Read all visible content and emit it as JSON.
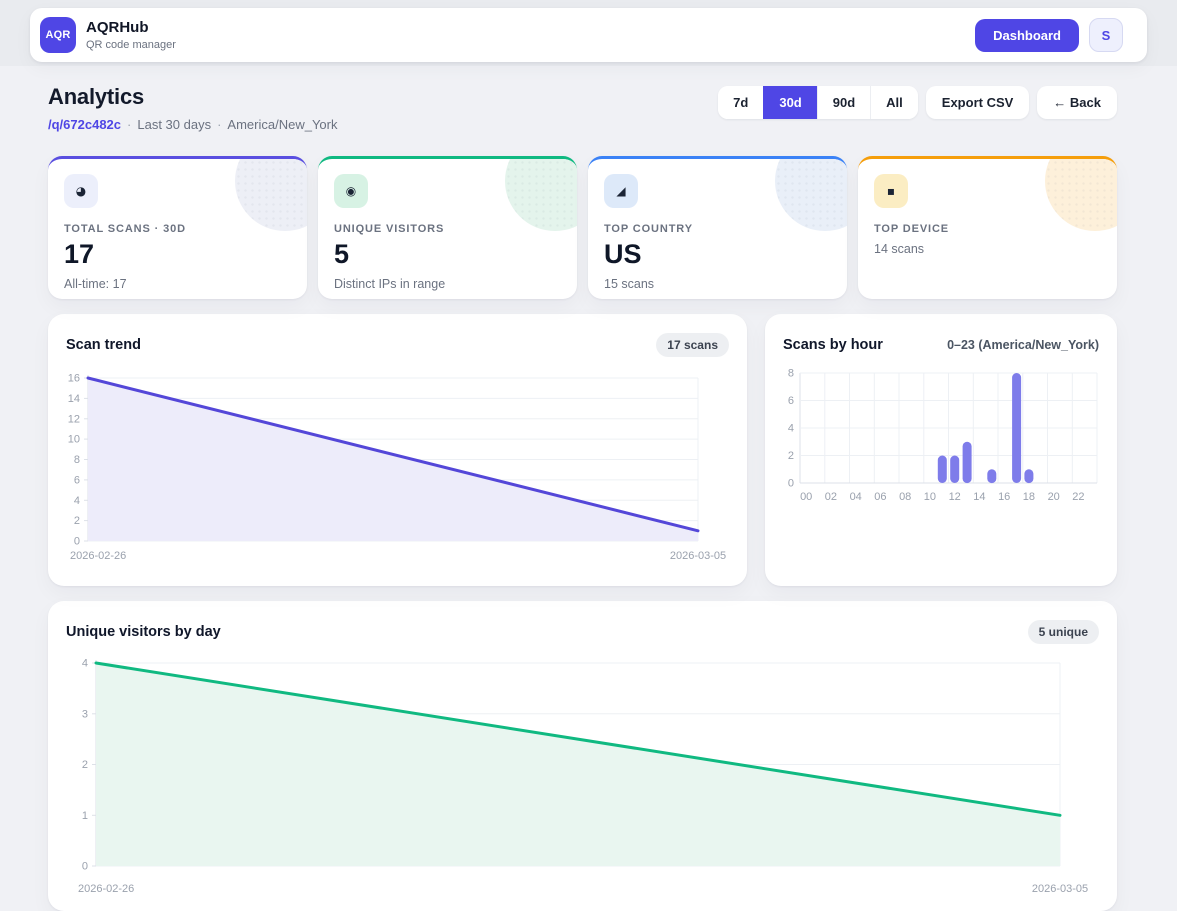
{
  "colors": {
    "primary": "#4f46e5",
    "page_bg": "#f0f1f5",
    "band_bg": "#e9ebef",
    "card_bg": "#ffffff",
    "badge_bg": "#edeff2",
    "grid": "#edf0f4",
    "axis": "#dde1e8"
  },
  "header": {
    "logo": "AQR",
    "title": "AQRHub",
    "subtitle": "QR code manager",
    "dashboard_label": "Dashboard",
    "avatar_initial": "S"
  },
  "page": {
    "title": "Analytics",
    "path": "/q/672c482c",
    "dot": "·",
    "range_note": "Last 30 days",
    "timezone": "America/New_York"
  },
  "toolbar": {
    "ranges": [
      "7d",
      "30d",
      "90d",
      "All"
    ],
    "active": "30d",
    "export_label": "Export CSV",
    "back_label": "← Back"
  },
  "stats": [
    {
      "icon": "◕",
      "label": "TOTAL SCANS · 30D",
      "value": "17",
      "sub": "All-time: 17",
      "accent": "#5a4fe0",
      "chip_bg": "#eceffb",
      "tint": "#edeff6"
    },
    {
      "icon": "◉",
      "label": "UNIQUE VISITORS",
      "value": "5",
      "sub": "Distinct IPs in range",
      "accent": "#10b981",
      "chip_bg": "#d7f2e4",
      "tint": "#e4f4ec"
    },
    {
      "icon": "◢",
      "label": "TOP COUNTRY",
      "value": "US",
      "sub": "15 scans",
      "accent": "#3b82f6",
      "chip_bg": "#dde9f9",
      "tint": "#e9eff8"
    },
    {
      "icon": "▪",
      "label": "TOP DEVICE",
      "value": "",
      "sub": "14 scans",
      "accent": "#f59e0b",
      "chip_bg": "#fbedc3",
      "tint": "#fdf0da"
    }
  ],
  "cards": {
    "trend": {
      "title": "Scan trend",
      "badge": "17 scans"
    },
    "hour": {
      "title": "Scans by hour",
      "subtitle": "0–23 (America/New_York)"
    },
    "daily": {
      "title": "Unique visitors by day",
      "badge": "5 unique"
    }
  },
  "chart_data": [
    {
      "name": "scan_trend",
      "type": "area",
      "title": "Scan trend",
      "x": [
        "2026-02-26",
        "2026-03-05"
      ],
      "values": [
        16,
        1
      ],
      "ylim": [
        0,
        16
      ],
      "yticks": [
        0,
        2,
        4,
        6,
        8,
        10,
        12,
        14,
        16
      ],
      "x_labels": [
        "2026-02-26",
        "2026-03-05"
      ],
      "line_color": "#5447d8",
      "fill_color": "#edecfa",
      "grid": true
    },
    {
      "name": "scans_by_hour",
      "type": "bar",
      "title": "Scans by hour",
      "timezone": "America/New_York",
      "categories": [
        "00",
        "01",
        "02",
        "03",
        "04",
        "05",
        "06",
        "07",
        "08",
        "09",
        "10",
        "11",
        "12",
        "13",
        "14",
        "15",
        "16",
        "17",
        "18",
        "19",
        "20",
        "21",
        "22",
        "23"
      ],
      "values": [
        0,
        0,
        0,
        0,
        0,
        0,
        0,
        0,
        0,
        0,
        0,
        2,
        2,
        3,
        0,
        1,
        0,
        8,
        1,
        0,
        0,
        0,
        0,
        0
      ],
      "ylim": [
        0,
        8
      ],
      "yticks": [
        0,
        2,
        4,
        6,
        8
      ],
      "xtick_every": 2,
      "bar_color": "#7e7cea",
      "grid": true
    },
    {
      "name": "unique_by_day",
      "type": "area",
      "title": "Unique visitors by day",
      "x": [
        "2026-02-26",
        "2026-03-05"
      ],
      "values": [
        4,
        1
      ],
      "ylim": [
        0,
        4
      ],
      "yticks": [
        0,
        1,
        2,
        3,
        4
      ],
      "x_labels": [
        "2026-02-26",
        "2026-03-05"
      ],
      "line_color": "#10b981",
      "fill_color": "#e9f6f0",
      "grid": true
    }
  ]
}
